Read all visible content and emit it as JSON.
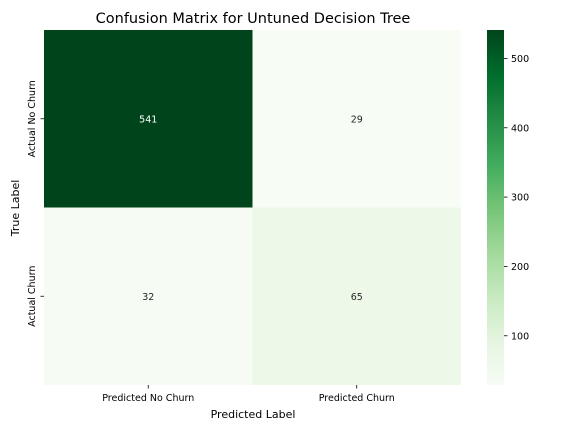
{
  "chart_data": {
    "type": "heatmap",
    "title": "Confusion Matrix for Untuned Decision Tree",
    "xlabel": "Predicted Label",
    "ylabel": "True Label",
    "x_categories": [
      "Predicted No Churn",
      "Predicted Churn"
    ],
    "y_categories": [
      "Actual No Churn",
      "Actual Churn"
    ],
    "values": [
      [
        541,
        29
      ],
      [
        32,
        65
      ]
    ],
    "colormap": "Greens",
    "colorbar": {
      "range": [
        29,
        541
      ],
      "ticks": [
        100,
        200,
        300,
        400,
        500
      ],
      "tick_labels": [
        "100",
        "200",
        "300",
        "400",
        "500"
      ]
    },
    "grid": false
  }
}
